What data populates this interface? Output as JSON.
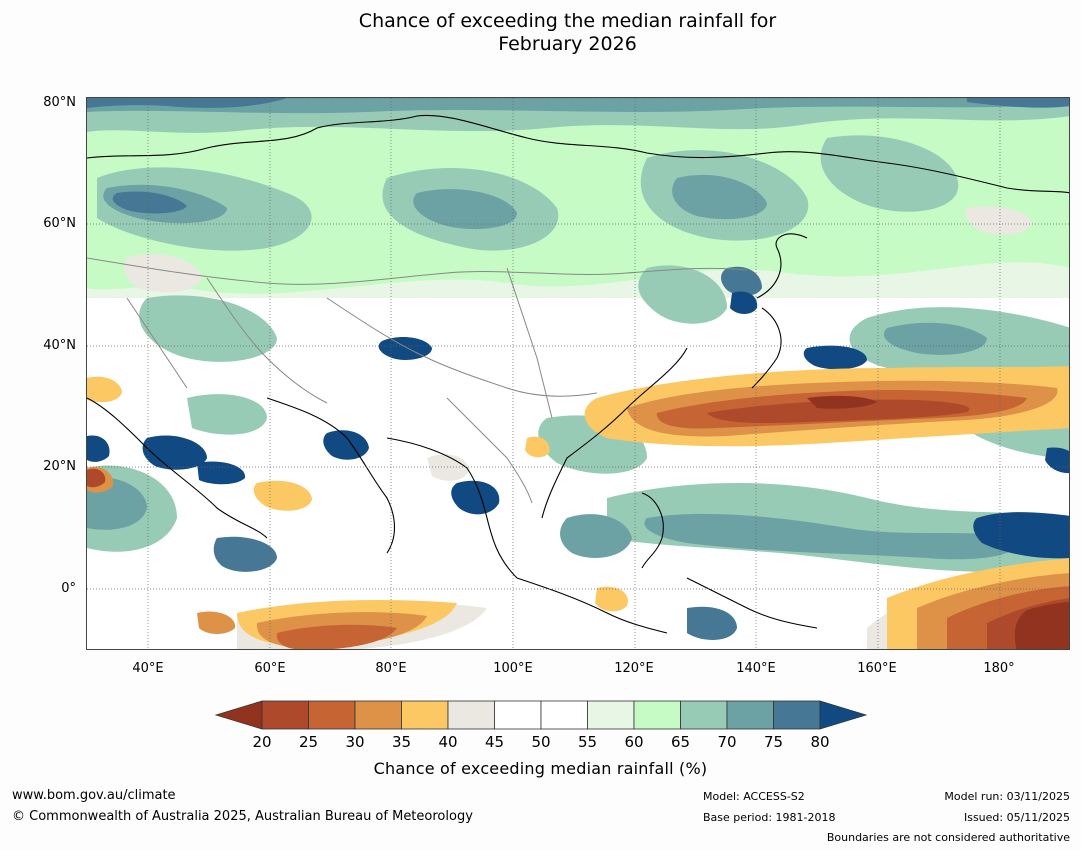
{
  "title_line1": "Chance of exceeding the median rainfall for",
  "title_line2": "February 2026",
  "map": {
    "lat_labels": [
      "80°N",
      "60°N",
      "40°N",
      "20°N",
      "0°"
    ],
    "lon_labels": [
      "40°E",
      "60°E",
      "80°E",
      "100°E",
      "120°E",
      "140°E",
      "160°E",
      "180°"
    ],
    "colors": {
      "c20": "#923320",
      "c25": "#ae4a2b",
      "c30": "#c66433",
      "c35": "#dd9248",
      "c40": "#fcc864",
      "c45": "#ebe7e1",
      "c55": "#ffffff",
      "c60": "#e8f6e6",
      "c65": "#c6fbc6",
      "c70": "#98cbb6",
      "c75": "#6ca2a4",
      "c80": "#467896",
      "c90": "#114a82"
    }
  },
  "colorbar": {
    "ticks": [
      "20",
      "25",
      "30",
      "35",
      "40",
      "45",
      "50",
      "55",
      "60",
      "65",
      "70",
      "75",
      "80"
    ],
    "title": "Chance of exceeding median rainfall (%)"
  },
  "footer": {
    "website": "www.bom.gov.au/climate",
    "copyright": "© Commonwealth of Australia 2025, Australian Bureau of Meteorology",
    "model": "Model: ACCESS-S2",
    "base_period": "Base period: 1981-2018",
    "model_run": "Model run: 03/11/2025",
    "issued": "Issued: 05/11/2025",
    "boundaries": "Boundaries are not considered authoritative"
  }
}
